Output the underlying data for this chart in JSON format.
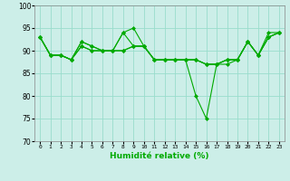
{
  "title": "",
  "xlabel": "Humidité relative (%)",
  "ylabel": "",
  "xlim": [
    -0.5,
    23.5
  ],
  "ylim": [
    70,
    100
  ],
  "yticks": [
    70,
    75,
    80,
    85,
    90,
    95,
    100
  ],
  "xtick_labels": [
    "0",
    "1",
    "2",
    "3",
    "4",
    "5",
    "6",
    "7",
    "8",
    "9",
    "10",
    "11",
    "12",
    "13",
    "14",
    "15",
    "16",
    "17",
    "18",
    "19",
    "20",
    "21",
    "22",
    "23"
  ],
  "xticks": [
    0,
    1,
    2,
    3,
    4,
    5,
    6,
    7,
    8,
    9,
    10,
    11,
    12,
    13,
    14,
    15,
    16,
    17,
    18,
    19,
    20,
    21,
    22,
    23
  ],
  "background_color": "#cceee8",
  "grid_color": "#99ddcc",
  "line_color": "#00aa00",
  "series": [
    [
      93,
      89,
      89,
      88,
      92,
      91,
      90,
      90,
      94,
      95,
      91,
      88,
      88,
      88,
      88,
      80,
      75,
      87,
      87,
      88,
      92,
      89,
      93,
      94
    ],
    [
      93,
      89,
      89,
      88,
      92,
      91,
      90,
      90,
      94,
      91,
      91,
      88,
      88,
      88,
      88,
      88,
      87,
      87,
      88,
      88,
      92,
      89,
      93,
      94
    ],
    [
      93,
      89,
      89,
      88,
      91,
      90,
      90,
      90,
      90,
      91,
      91,
      88,
      88,
      88,
      88,
      88,
      87,
      87,
      88,
      88,
      92,
      89,
      93,
      94
    ],
    [
      93,
      89,
      89,
      88,
      91,
      90,
      90,
      90,
      90,
      91,
      91,
      88,
      88,
      88,
      88,
      88,
      87,
      87,
      88,
      88,
      92,
      89,
      94,
      94
    ]
  ]
}
